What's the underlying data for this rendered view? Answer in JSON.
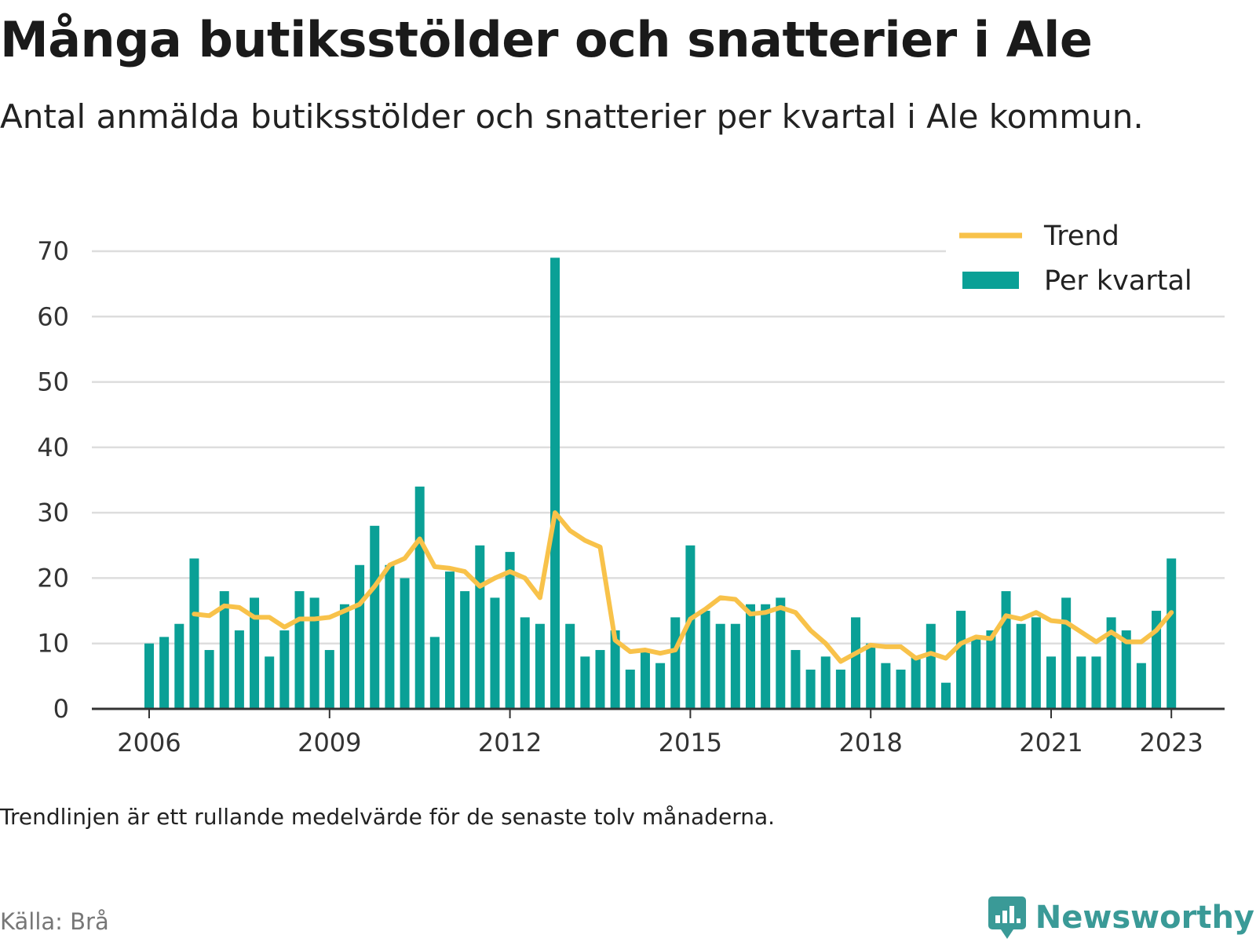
{
  "header": {
    "title": "Många butiksstölder och snatterier i Ale",
    "subtitle": "Antal anmälda butiksstölder och snatterier per kvartal i Ale kommun."
  },
  "footer": {
    "note": "Trendlinjen är ett rullande medelvärde för de senaste tolv månaderna.",
    "source": "Källa: Brå",
    "brand": "Newsworthy"
  },
  "colors": {
    "bar": "#0aa096",
    "trend": "#f8c24a",
    "grid": "#dddddd",
    "axis": "#333333",
    "brand": "#3a9a97"
  },
  "chart_data": {
    "type": "bar",
    "x_unit": "quarter",
    "x_start": "2006 Q1",
    "x_ticks": [
      "2006",
      "2009",
      "2012",
      "2015",
      "2018",
      "2021",
      "2023"
    ],
    "ylim": [
      0,
      70
    ],
    "y_ticks": [
      "0",
      "10",
      "20",
      "30",
      "40",
      "50",
      "60",
      "70"
    ],
    "grid": true,
    "legend_position": "top-right",
    "series": [
      {
        "name": "Per kvartal",
        "type": "bar",
        "values": [
          10,
          11,
          13,
          23,
          9,
          18,
          12,
          17,
          8,
          12,
          18,
          17,
          9,
          16,
          22,
          28,
          22,
          20,
          34,
          11,
          21,
          18,
          25,
          17,
          24,
          14,
          13,
          69,
          13,
          8,
          9,
          12,
          6,
          9,
          7,
          14,
          25,
          15,
          13,
          13,
          16,
          16,
          17,
          9,
          6,
          8,
          6,
          14,
          10,
          7,
          6,
          8,
          13,
          4,
          15,
          11,
          12,
          18,
          13,
          14,
          8,
          17,
          8,
          8,
          14,
          12,
          7,
          15,
          23
        ]
      },
      {
        "name": "Trend",
        "type": "line",
        "values": [
          null,
          null,
          null,
          14.5,
          14.25,
          15.75,
          15.5,
          14,
          14,
          12.5,
          13.75,
          13.75,
          14,
          15,
          16,
          18.75,
          22,
          23,
          26,
          21.75,
          21.5,
          21,
          18.75,
          20,
          21,
          20,
          17,
          30,
          27.25,
          25.75,
          24.75,
          10.5,
          8.75,
          9,
          8.5,
          9,
          13.75,
          15.25,
          17,
          16.75,
          14.5,
          14.75,
          15.5,
          14.75,
          12,
          10,
          7.25,
          8.5,
          9.75,
          9.5,
          9.5,
          7.75,
          8.5,
          7.75,
          10,
          11,
          10.75,
          14.25,
          13.75,
          14.75,
          13.5,
          13.25,
          11.75,
          10.25,
          11.75,
          10.25,
          10.25,
          12,
          14.75
        ]
      }
    ]
  }
}
